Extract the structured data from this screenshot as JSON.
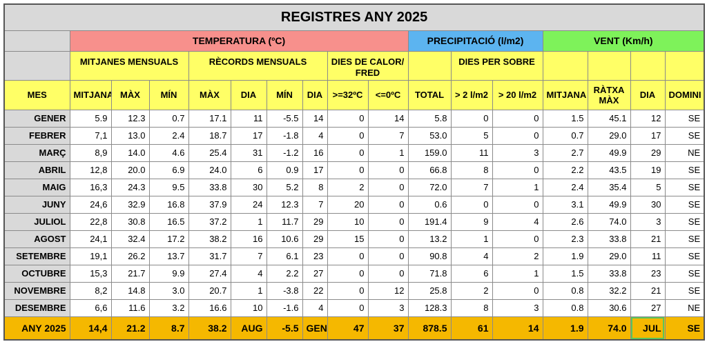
{
  "title": "REGISTRES ANY 2025",
  "groups": [
    "TEMPERATURA (ºC)",
    "PRECIPITACIÓ (l/m2)",
    "VENT (Km/h)"
  ],
  "subgroups": [
    "MITJANES MENSUALS",
    "RÈCORDS MENSUALS",
    "DIES DE CALOR/ FRED",
    "DIES PER SOBRE"
  ],
  "headers": [
    "MES",
    "MITJANA",
    "MÀX",
    "MÍN",
    "MÀX",
    "DIA",
    "MÍN",
    "DIA",
    ">=32ºC",
    "<=0ºC",
    "TOTAL",
    "> 2 l/m2",
    "> 20 l/m2",
    "MITJANA",
    "RÀTXA MÀX",
    "DIA",
    "DOMINI"
  ],
  "rows": [
    [
      "GENER",
      "5.9",
      "12.3",
      "0.7",
      "17.1",
      "11",
      "-5.5",
      "14",
      "0",
      "14",
      "5.8",
      "0",
      "0",
      "1.5",
      "45.1",
      "12",
      "SE"
    ],
    [
      "FEBRER",
      "7,1",
      "13.0",
      "2.4",
      "18.7",
      "17",
      "-1.8",
      "4",
      "0",
      "7",
      "53.0",
      "5",
      "0",
      "0.7",
      "29.0",
      "17",
      "SE"
    ],
    [
      "MARÇ",
      "8,9",
      "14.0",
      "4.6",
      "25.4",
      "31",
      "-1.2",
      "16",
      "0",
      "1",
      "159.0",
      "11",
      "3",
      "2.7",
      "49.9",
      "29",
      "NE"
    ],
    [
      "ABRIL",
      "12,8",
      "20.0",
      "6.9",
      "24.0",
      "6",
      "0.9",
      "17",
      "0",
      "0",
      "66.8",
      "8",
      "0",
      "2.2",
      "43.5",
      "19",
      "SE"
    ],
    [
      "MAIG",
      "16,3",
      "24.3",
      "9.5",
      "33.8",
      "30",
      "5.2",
      "8",
      "2",
      "0",
      "72.0",
      "7",
      "1",
      "2.4",
      "35.4",
      "5",
      "SE"
    ],
    [
      "JUNY",
      "24,6",
      "32.9",
      "16.8",
      "37.9",
      "24",
      "12.3",
      "7",
      "20",
      "0",
      "0.6",
      "0",
      "0",
      "3.1",
      "49.9",
      "30",
      "SE"
    ],
    [
      "JULIOL",
      "22,8",
      "30.8",
      "16.5",
      "37.2",
      "1",
      "11.7",
      "29",
      "10",
      "0",
      "191.4",
      "9",
      "4",
      "2.6",
      "74.0",
      "3",
      "SE"
    ],
    [
      "AGOST",
      "24,1",
      "32.4",
      "17.2",
      "38.2",
      "16",
      "10.6",
      "29",
      "15",
      "0",
      "13.2",
      "1",
      "0",
      "2.3",
      "33.8",
      "21",
      "SE"
    ],
    [
      "SETEMBRE",
      "19,1",
      "26.2",
      "13.7",
      "31.7",
      "7",
      "6.1",
      "23",
      "0",
      "0",
      "90.8",
      "4",
      "2",
      "1.9",
      "29.0",
      "11",
      "SE"
    ],
    [
      "OCTUBRE",
      "15,3",
      "21.7",
      "9.9",
      "27.4",
      "4",
      "2.2",
      "27",
      "0",
      "0",
      "71.8",
      "6",
      "1",
      "1.5",
      "33.8",
      "23",
      "SE"
    ],
    [
      "NOVEMBRE",
      "8,2",
      "14.8",
      "3.0",
      "20.7",
      "1",
      "-3.8",
      "22",
      "0",
      "12",
      "25.8",
      "2",
      "0",
      "0.8",
      "32.2",
      "21",
      "SE"
    ],
    [
      "DESEMBRE",
      "6,6",
      "11.6",
      "3.2",
      "16.6",
      "10",
      "-1.6",
      "4",
      "0",
      "3",
      "128.3",
      "8",
      "3",
      "0.8",
      "30.6",
      "27",
      "NE"
    ]
  ],
  "total": [
    "ANY 2025",
    "14,4",
    "21.2",
    "8.7",
    "38.2",
    "AUG",
    "-5.5",
    "GEN",
    "47",
    "37",
    "878.5",
    "61",
    "14",
    "1.9",
    "74.0",
    "JUL",
    "SE"
  ]
}
